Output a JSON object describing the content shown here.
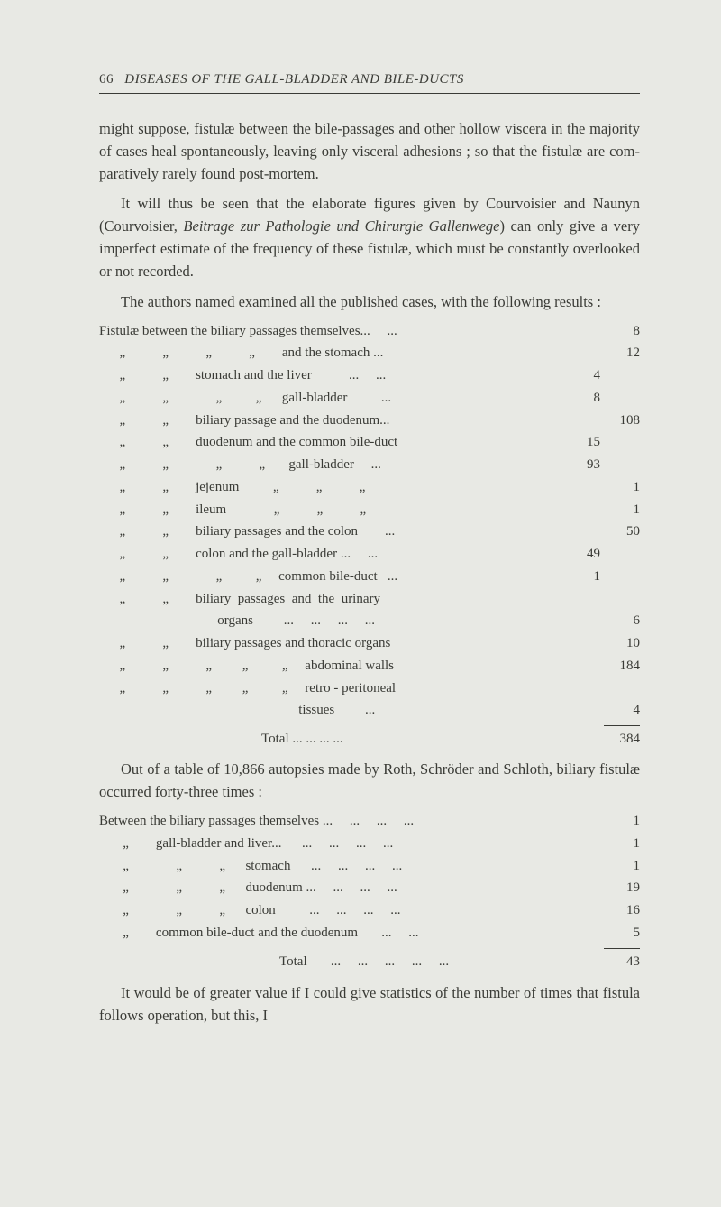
{
  "header": {
    "page_number": "66",
    "title": "DISEASES OF THE GALL-BLADDER AND BILE-DUCTS"
  },
  "paragraphs": {
    "p1": "might suppose, fistulæ between the bile-passages and other hollow viscera in the majority of cases heal spontaneously, leaving only visceral adhesions ; so that the fistulæ are com-paratively rarely found post-mortem.",
    "p2_a": "It will thus be seen that the elaborate figures given by Courvoisier and Naunyn (Courvoisier, ",
    "p2_i1": "Beitrage zur Pathologie und Chirurgie Gallenwege",
    "p2_b": ") can only give a very imperfect estimate of the frequency of these fistulæ, which must be constantly overlooked or not recorded.",
    "p3": "The authors named examined all the published cases, with the following results :",
    "p4": "Out of a table of 10,866 autopsies made by Roth, Schröder and Schloth, biliary fistulæ occurred forty-three times :",
    "p5": "It would be of greater value if I could give statistics of the number of times that fistula follows operation, but this, I"
  },
  "table1": {
    "rows": [
      {
        "label": "Fistulæ between the biliary passages themselves...     ...",
        "c1": "",
        "c2": "8"
      },
      {
        "label": "      „           „           „           „        and the stomach ...",
        "c1": "",
        "c2": "12"
      },
      {
        "label": "      „           „        stomach and the liver           ...     ...",
        "c1": "4",
        "c2": ""
      },
      {
        "label": "      „           „              „          „      gall-bladder          ...",
        "c1": "8",
        "c2": ""
      },
      {
        "label": "      „           „        biliary passage and the duodenum...",
        "c1": "",
        "c2": "108"
      },
      {
        "label": "      „           „        duodenum and the common bile-duct",
        "c1": "15",
        "c2": ""
      },
      {
        "label": "      „           „              „           „       gall-bladder     ...",
        "c1": "93",
        "c2": ""
      },
      {
        "label": "      „           „        jejenum          „           „           „",
        "c1": "",
        "c2": "1"
      },
      {
        "label": "      „           „        ileum              „           „           „",
        "c1": "",
        "c2": "1"
      },
      {
        "label": "      „           „        biliary passages and the colon        ...",
        "c1": "",
        "c2": "50"
      },
      {
        "label": "      „           „        colon and the gall-bladder ...     ...",
        "c1": "49",
        "c2": ""
      },
      {
        "label": "      „           „              „          „     common bile-duct   ...",
        "c1": "1",
        "c2": ""
      },
      {
        "label": "      „           „        biliary  passages  and  the  urinary",
        "c1": "",
        "c2": ""
      },
      {
        "label": "                                   organs         ...     ...     ...     ...",
        "c1": "",
        "c2": "6"
      },
      {
        "label": "      „           „        biliary passages and thoracic organs",
        "c1": "",
        "c2": "10"
      },
      {
        "label": "      „           „           „         „          „     abdominal walls",
        "c1": "",
        "c2": "184"
      },
      {
        "label": "      „           „           „         „          „     retro - peritoneal",
        "c1": "",
        "c2": ""
      },
      {
        "label": "                                                           tissues         ...",
        "c1": "",
        "c2": "4"
      }
    ],
    "total_label": "Total        ...     ...     ...     ...",
    "total_value": "384"
  },
  "table2": {
    "rows": [
      {
        "label": "Between the biliary passages themselves ...     ...     ...     ...",
        "val": "1"
      },
      {
        "label": "       „        gall-bladder and liver...      ...     ...     ...     ...",
        "val": "1"
      },
      {
        "label": "       „              „           „      stomach      ...     ...     ...     ...",
        "val": "1"
      },
      {
        "label": "       „              „           „      duodenum ...     ...     ...     ...",
        "val": "19"
      },
      {
        "label": "       „              „           „      colon          ...     ...     ...     ...",
        "val": "16"
      },
      {
        "label": "       „        common bile-duct and the duodenum       ...     ...",
        "val": "5"
      }
    ],
    "total_label": "Total       ...     ...     ...     ...     ...",
    "total_value": "43"
  },
  "colors": {
    "background": "#e8e9e4",
    "text": "#3a3b36"
  }
}
